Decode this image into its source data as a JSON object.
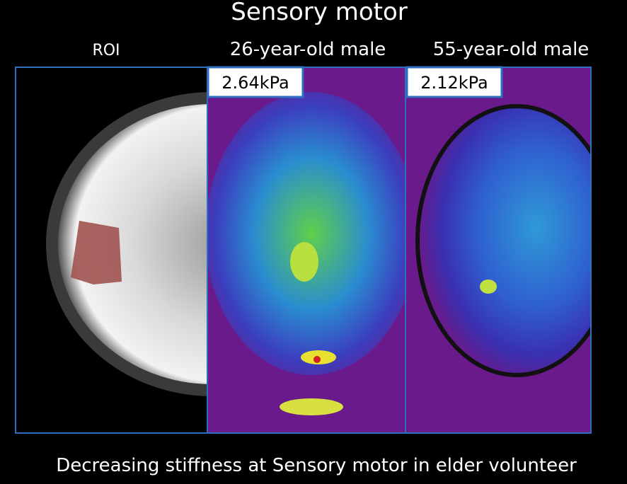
{
  "title": "Sensory motor",
  "panels": [
    {
      "label": "ROI"
    },
    {
      "label": "26-year-old male",
      "stiffness": "2.64kPa"
    },
    {
      "label": "55-year-old male",
      "stiffness": "2.12kPa"
    }
  ],
  "caption": "Decreasing stiffness at Sensory motor in elder volunteer"
}
